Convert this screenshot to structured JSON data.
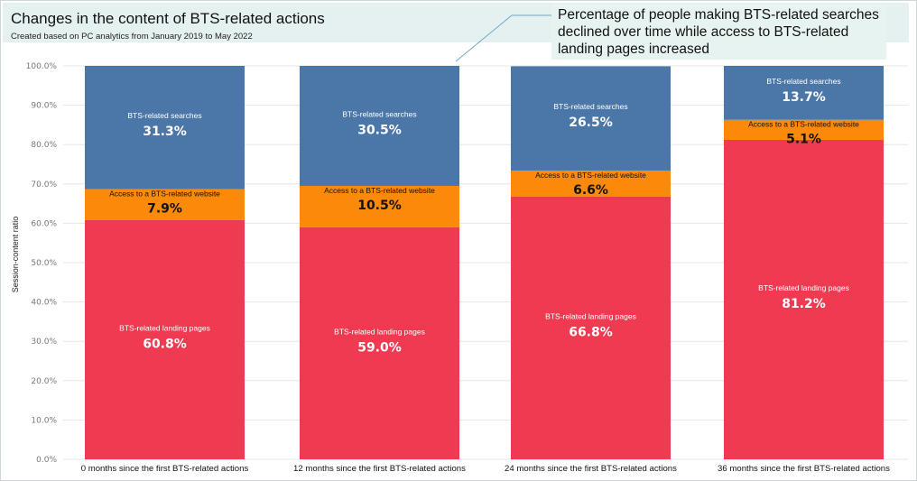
{
  "header": {
    "title": "Changes in the content of BTS-related actions",
    "subtitle": "Created based on PC analytics from January 2019 to May 2022"
  },
  "callout": {
    "text": "Percentage of people making BTS-related searches declined over time while access to BTS-related landing pages increased"
  },
  "chart_data": {
    "type": "bar",
    "stacked": true,
    "percent_stacked": true,
    "categories": [
      "0 months since the first BTS-related actions",
      "12 months since the first BTS-related actions",
      "24 months since the first BTS-related actions",
      "36 months since the first BTS-related actions"
    ],
    "series": [
      {
        "name": "BTS-related landing pages",
        "values": [
          60.8,
          59.0,
          66.8,
          81.2
        ],
        "labels": [
          "60.8%",
          "59.0%",
          "66.8%",
          "81.2%"
        ],
        "color": "#f03a52"
      },
      {
        "name": "Access to a BTS-related website",
        "values": [
          7.9,
          10.5,
          6.6,
          5.1
        ],
        "labels": [
          "7.9%",
          "10.5%",
          "6.6%",
          "5.1%"
        ],
        "color": "#fb8a0b"
      },
      {
        "name": "BTS-related searches",
        "values": [
          31.3,
          30.5,
          26.5,
          13.7
        ],
        "labels": [
          "31.3%",
          "30.5%",
          "26.5%",
          "13.7%"
        ],
        "color": "#4b77a8"
      }
    ],
    "ylabel": "Session-content ratio",
    "xlabel": "",
    "ylim": [
      0,
      100
    ],
    "yticks": [
      0,
      10,
      20,
      30,
      40,
      50,
      60,
      70,
      80,
      90,
      100
    ],
    "ytick_labels": [
      "0.0%",
      "10.0%",
      "20.0%",
      "30.0%",
      "40.0%",
      "50.0%",
      "60.0%",
      "70.0%",
      "80.0%",
      "90.0%",
      "100.0%"
    ],
    "grid": true,
    "legend": "none (labels inside segments)"
  },
  "colors": {
    "title_band": "#e5f1f1",
    "callout_bg": "#e7f3f0",
    "grid": "#e6e6e6",
    "label_light": "#ffffff",
    "label_dark": "#111111"
  }
}
